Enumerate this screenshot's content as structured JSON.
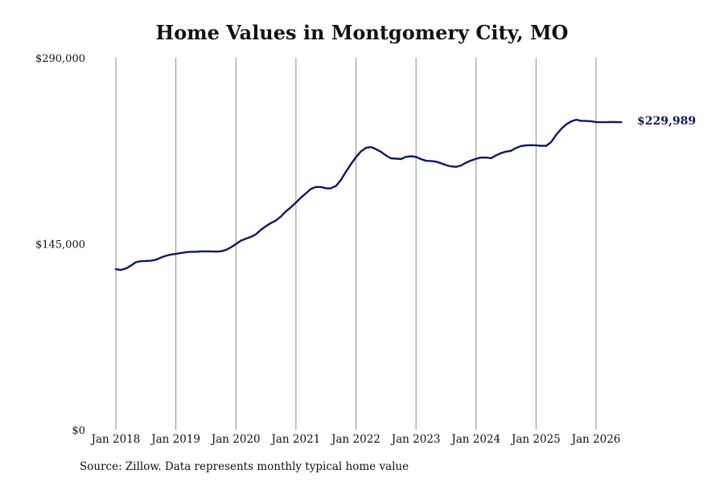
{
  "chart_data": {
    "type": "line",
    "title": "Home Values in Montgomery City, MO",
    "xlabel": "",
    "ylabel": "",
    "ylim": [
      0,
      290000
    ],
    "y_tick_labels": [
      "$290,000",
      "$145,000",
      "$0"
    ],
    "y_tick_values": [
      290000,
      145000,
      0
    ],
    "x_tick_labels": [
      "Jan 2018",
      "Jan 2019",
      "Jan 2020",
      "Jan 2021",
      "Jan 2022",
      "Jan 2023",
      "Jan 2024",
      "Jan 2025",
      "Jan 2026"
    ],
    "x_tick_values": [
      2018,
      2019,
      2020,
      2021,
      2022,
      2023,
      2024,
      2025,
      2026
    ],
    "xlim": [
      2018,
      2026.5
    ],
    "grid": "vertical",
    "line_color": "#131560",
    "end_label": "$229,989",
    "x": [
      2018.0,
      2018.08,
      2018.17,
      2018.25,
      2018.33,
      2018.42,
      2018.5,
      2018.58,
      2018.67,
      2018.75,
      2018.83,
      2018.92,
      2019.0,
      2019.08,
      2019.17,
      2019.25,
      2019.33,
      2019.42,
      2019.5,
      2019.58,
      2019.67,
      2019.75,
      2019.83,
      2019.92,
      2020.0,
      2020.08,
      2020.17,
      2020.25,
      2020.33,
      2020.42,
      2020.5,
      2020.58,
      2020.67,
      2020.75,
      2020.83,
      2020.92,
      2021.0,
      2021.08,
      2021.17,
      2021.25,
      2021.33,
      2021.42,
      2021.5,
      2021.58,
      2021.67,
      2021.75,
      2021.83,
      2021.92,
      2022.0,
      2022.08,
      2022.17,
      2022.25,
      2022.33,
      2022.42,
      2022.5,
      2022.58,
      2022.67,
      2022.75,
      2022.83,
      2022.92,
      2023.0,
      2023.08,
      2023.17,
      2023.25,
      2023.33,
      2023.42,
      2023.5,
      2023.58,
      2023.67,
      2023.75,
      2023.83,
      2023.92,
      2024.0,
      2024.08,
      2024.17,
      2024.25,
      2024.33,
      2024.42,
      2024.5,
      2024.58,
      2024.67,
      2024.75,
      2024.83,
      2024.92,
      2025.0,
      2025.08,
      2025.17,
      2025.25,
      2025.33,
      2025.42,
      2025.5,
      2025.58,
      2025.67,
      2025.75,
      2025.83,
      2025.92,
      2026.0,
      2026.08,
      2026.17,
      2026.25,
      2026.33,
      2026.42,
      2026.5
    ],
    "values": [
      125200,
      124600,
      125800,
      128000,
      130600,
      131500,
      131600,
      131800,
      132600,
      134300,
      135600,
      136700,
      137100,
      137800,
      138500,
      138800,
      138800,
      139100,
      139100,
      139100,
      138900,
      139200,
      140200,
      142300,
      144900,
      147400,
      149100,
      150400,
      152300,
      156000,
      158800,
      161100,
      163300,
      166300,
      170200,
      173600,
      177200,
      180800,
      184500,
      187800,
      189300,
      189300,
      188300,
      188300,
      190300,
      194800,
      201000,
      207300,
      212500,
      216900,
      219900,
      220500,
      218900,
      216600,
      213900,
      211700,
      211400,
      211100,
      212800,
      213300,
      212800,
      211100,
      209700,
      209600,
      209100,
      207800,
      206400,
      205400,
      205000,
      206100,
      208200,
      210000,
      211300,
      212200,
      212300,
      211800,
      213900,
      215800,
      216900,
      217500,
      219800,
      221200,
      221700,
      221900,
      221800,
      221400,
      221400,
      224300,
      229600,
      234600,
      238000,
      240300,
      241800,
      240900,
      240800,
      240600,
      239800,
      239800,
      239800,
      240000,
      239900,
      239800,
      229989
    ]
  }
}
